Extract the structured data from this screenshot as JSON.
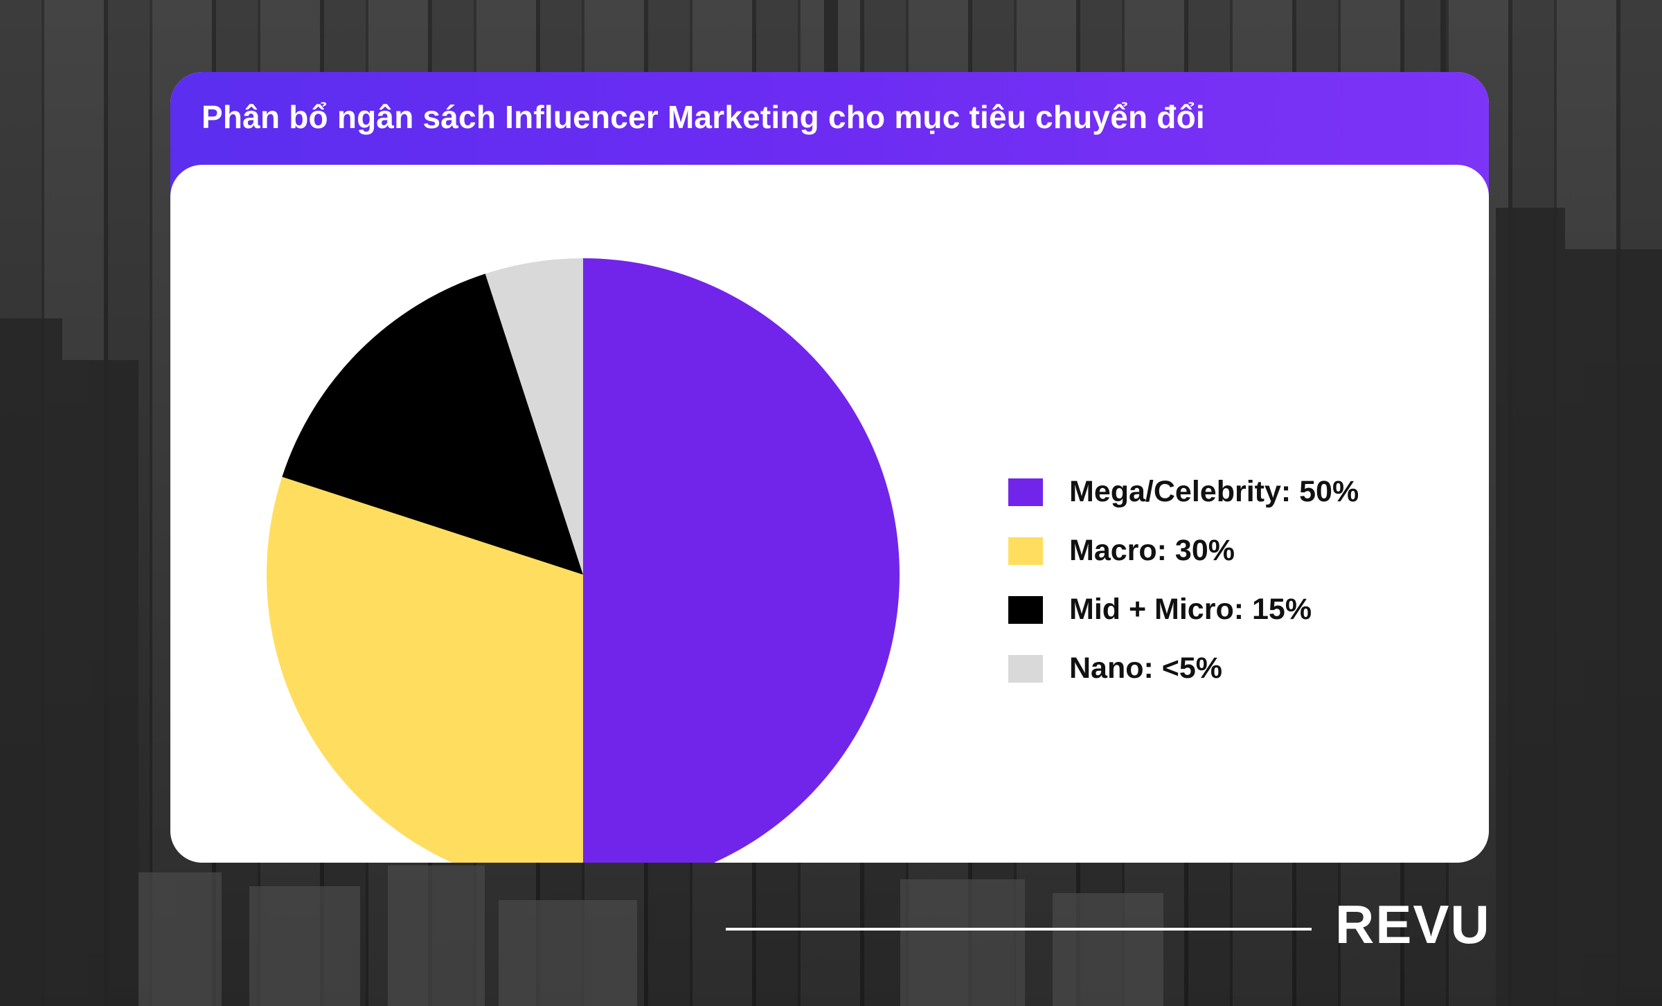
{
  "title": "Phân bổ ngân sách Influencer Marketing cho mục tiêu chuyển đổi",
  "brand": "REVU",
  "colors": {
    "header_start": "#5b2ef0",
    "header_end": "#7c34f7",
    "card_bg": "#ffffff"
  },
  "chart_data": {
    "type": "pie",
    "title": "Phân bổ ngân sách Influencer Marketing cho mục tiêu chuyển đổi",
    "legend_position": "right",
    "slices": [
      {
        "name": "Mega/Celebrity",
        "label": "Mega/Celebrity: 50%",
        "value": 50,
        "color": "#7225ea"
      },
      {
        "name": "Macro",
        "label": "Macro: 30%",
        "value": 30,
        "color": "#ffde5f"
      },
      {
        "name": "Mid + Micro",
        "label": "Mid + Micro: 15%",
        "value": 15,
        "color": "#000000"
      },
      {
        "name": "Nano",
        "label": "Nano: <5%",
        "value": 5,
        "color": "#d9d9d9"
      }
    ]
  }
}
